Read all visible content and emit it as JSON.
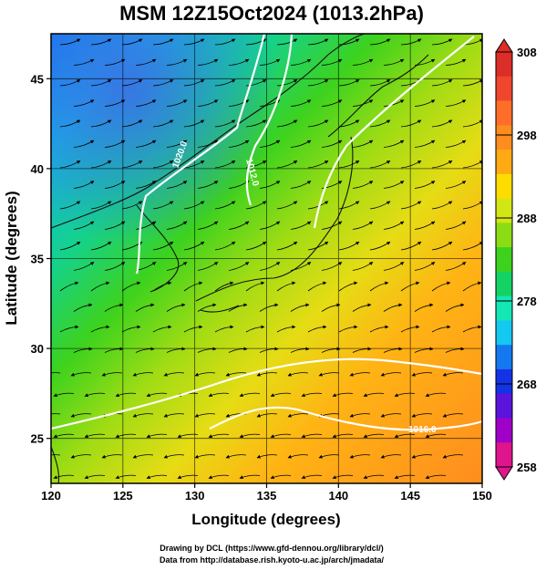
{
  "title": "MSM 12Z15Oct2024 (1013.2hPa)",
  "xlabel": "Longitude (degrees)",
  "ylabel": "Latitude  (degrees)",
  "x_ticks": [
    "120",
    "125",
    "130",
    "135",
    "140",
    "145",
    "150"
  ],
  "y_ticks": [
    "25",
    "30",
    "35",
    "40",
    "45"
  ],
  "colorbar": {
    "ticks": [
      "258",
      "268",
      "278",
      "288",
      "298",
      "308"
    ],
    "min": 258,
    "max": 308,
    "colors": [
      "#e0148c",
      "#a000c8",
      "#5a14dc",
      "#1432e6",
      "#1478f0",
      "#14c8f0",
      "#14e6b4",
      "#14d264",
      "#3cd21e",
      "#8cdc14",
      "#d2e614",
      "#ffdc00",
      "#ffaa14",
      "#ff8c1e",
      "#ff6e28",
      "#f0462d",
      "#dc2d28"
    ]
  },
  "contour_labels": [
    "1020.0",
    "1012.0",
    "1016.0"
  ],
  "credits": {
    "line1": "Drawing by DCL (https://www.gfd-dennou.org/library/dcl/)",
    "line2": "Data from http://database.rish.kyoto-u.ac.jp/arch/jmadata/"
  },
  "chart_data": {
    "type": "map",
    "field": "temperature (K) with wind streamlines and isobars (hPa)",
    "level": "1013.2hPa",
    "xlim": [
      120,
      150
    ],
    "ylim": [
      22.5,
      47.5
    ],
    "isobars": [
      1012.0,
      1016.0,
      1020.0
    ],
    "temperature_range": [
      258,
      308
    ]
  }
}
